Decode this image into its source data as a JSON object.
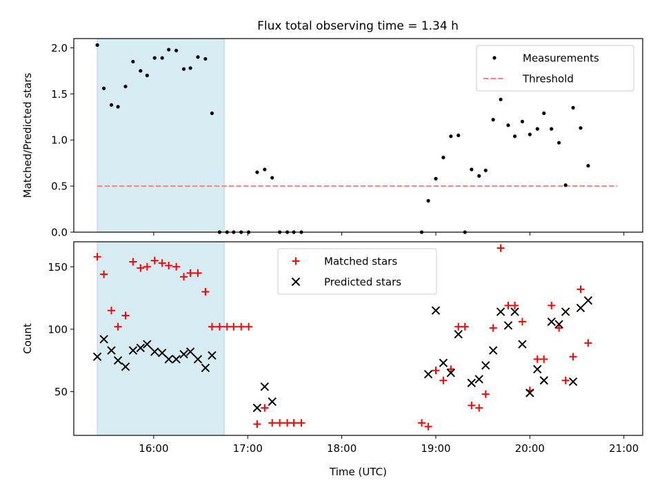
{
  "chart_data": [
    {
      "type": "scatter",
      "title": "Flux total observing time = 1.34 h",
      "xlabel": "",
      "ylabel": "Matched/Predicted stars",
      "xlim_hours": [
        15.15,
        21.2
      ],
      "ylim": [
        0,
        2.1
      ],
      "yticks": [
        0.0,
        0.5,
        1.0,
        1.5,
        2.0
      ],
      "ytick_labels": [
        "0.0",
        "0.5",
        "1.0",
        "1.5",
        "2.0"
      ],
      "shaded_span_hours": [
        15.4,
        16.75
      ],
      "threshold": {
        "value": 0.5,
        "x_range_hours": [
          15.4,
          20.93
        ],
        "color": "#ff7f7f"
      },
      "legend": {
        "position": "top-right",
        "entries": [
          "Measurements",
          "Threshold"
        ]
      },
      "series": [
        {
          "name": "Measurements",
          "marker": "dot",
          "color": "#000000",
          "points": [
            [
              15.4,
              2.03
            ],
            [
              15.47,
              1.56
            ],
            [
              15.55,
              1.38
            ],
            [
              15.62,
              1.36
            ],
            [
              15.7,
              1.58
            ],
            [
              15.78,
              1.85
            ],
            [
              15.86,
              1.75
            ],
            [
              15.93,
              1.7
            ],
            [
              16.01,
              1.89
            ],
            [
              16.09,
              1.89
            ],
            [
              16.16,
              1.98
            ],
            [
              16.24,
              1.97
            ],
            [
              16.32,
              1.77
            ],
            [
              16.39,
              1.78
            ],
            [
              16.47,
              1.9
            ],
            [
              16.55,
              1.88
            ],
            [
              16.62,
              1.29
            ],
            [
              16.7,
              0.0
            ],
            [
              16.78,
              0.0
            ],
            [
              16.85,
              0.0
            ],
            [
              16.93,
              0.0
            ],
            [
              17.01,
              0.0
            ],
            [
              17.1,
              0.65
            ],
            [
              17.18,
              0.68
            ],
            [
              17.26,
              0.59
            ],
            [
              17.34,
              0.0
            ],
            [
              17.42,
              0.0
            ],
            [
              17.49,
              0.0
            ],
            [
              17.57,
              0.0
            ],
            [
              18.85,
              0.0
            ],
            [
              18.92,
              0.34
            ],
            [
              19.0,
              0.58
            ],
            [
              19.08,
              0.81
            ],
            [
              19.16,
              1.04
            ],
            [
              19.24,
              1.05
            ],
            [
              19.31,
              0.0
            ],
            [
              19.38,
              0.68
            ],
            [
              19.46,
              0.61
            ],
            [
              19.53,
              0.67
            ],
            [
              19.61,
              1.22
            ],
            [
              19.69,
              1.44
            ],
            [
              19.77,
              1.16
            ],
            [
              19.84,
              1.04
            ],
            [
              19.92,
              1.2
            ],
            [
              20.0,
              1.06
            ],
            [
              20.08,
              1.12
            ],
            [
              20.15,
              1.29
            ],
            [
              20.23,
              1.12
            ],
            [
              20.31,
              0.97
            ],
            [
              20.38,
              0.51
            ],
            [
              20.46,
              1.35
            ],
            [
              20.54,
              1.13
            ],
            [
              20.62,
              0.72
            ]
          ]
        }
      ]
    },
    {
      "type": "scatter",
      "title": "",
      "xlabel": "Time (UTC)",
      "ylabel": "Count",
      "xlim_hours": [
        15.15,
        21.2
      ],
      "ylim": [
        15,
        170
      ],
      "yticks": [
        50,
        100,
        150
      ],
      "ytick_labels": [
        "50",
        "100",
        "150"
      ],
      "xticks_hours": [
        16,
        17,
        18,
        19,
        20,
        21
      ],
      "xtick_labels": [
        "16:00",
        "17:00",
        "18:00",
        "19:00",
        "20:00",
        "21:00"
      ],
      "shaded_span_hours": [
        15.4,
        16.75
      ],
      "legend": {
        "position": "top-center",
        "entries": [
          "Matched stars",
          "Predicted stars"
        ]
      },
      "series": [
        {
          "name": "Matched stars",
          "marker": "plus",
          "color": "#ff0000",
          "points": [
            [
              15.4,
              158
            ],
            [
              15.47,
              144
            ],
            [
              15.55,
              115
            ],
            [
              15.62,
              102
            ],
            [
              15.7,
              111
            ],
            [
              15.78,
              154
            ],
            [
              15.86,
              149
            ],
            [
              15.93,
              150
            ],
            [
              16.01,
              155
            ],
            [
              16.09,
              153
            ],
            [
              16.16,
              151
            ],
            [
              16.24,
              150
            ],
            [
              16.32,
              142
            ],
            [
              16.39,
              145
            ],
            [
              16.47,
              145
            ],
            [
              16.55,
              130
            ],
            [
              16.62,
              102
            ],
            [
              16.7,
              102
            ],
            [
              16.78,
              102
            ],
            [
              16.85,
              102
            ],
            [
              16.93,
              102
            ],
            [
              17.01,
              102
            ],
            [
              17.1,
              24
            ],
            [
              17.18,
              37
            ],
            [
              17.26,
              25
            ],
            [
              17.34,
              25
            ],
            [
              17.42,
              25
            ],
            [
              17.49,
              25
            ],
            [
              17.57,
              25
            ],
            [
              18.85,
              25
            ],
            [
              18.92,
              22
            ],
            [
              19.0,
              67
            ],
            [
              19.08,
              59
            ],
            [
              19.16,
              68
            ],
            [
              19.24,
              102
            ],
            [
              19.31,
              102
            ],
            [
              19.38,
              39
            ],
            [
              19.46,
              37
            ],
            [
              19.53,
              48
            ],
            [
              19.61,
              101
            ],
            [
              19.69,
              165
            ],
            [
              19.77,
              119
            ],
            [
              19.84,
              119
            ],
            [
              19.92,
              106
            ],
            [
              20.0,
              51
            ],
            [
              20.08,
              76
            ],
            [
              20.15,
              76
            ],
            [
              20.23,
              119
            ],
            [
              20.31,
              101
            ],
            [
              20.38,
              59
            ],
            [
              20.46,
              78
            ],
            [
              20.54,
              132
            ],
            [
              20.62,
              89
            ]
          ]
        },
        {
          "name": "Predicted stars",
          "marker": "x",
          "color": "#000000",
          "points": [
            [
              15.4,
              78
            ],
            [
              15.47,
              92
            ],
            [
              15.55,
              83
            ],
            [
              15.62,
              75
            ],
            [
              15.7,
              70
            ],
            [
              15.78,
              83
            ],
            [
              15.86,
              85
            ],
            [
              15.93,
              88
            ],
            [
              16.01,
              82
            ],
            [
              16.09,
              81
            ],
            [
              16.16,
              76
            ],
            [
              16.24,
              76
            ],
            [
              16.32,
              80
            ],
            [
              16.39,
              82
            ],
            [
              16.47,
              76
            ],
            [
              16.55,
              69
            ],
            [
              16.62,
              79
            ],
            [
              17.1,
              37
            ],
            [
              17.18,
              54
            ],
            [
              17.26,
              42
            ],
            [
              18.92,
              64
            ],
            [
              19.0,
              115
            ],
            [
              19.08,
              73
            ],
            [
              19.16,
              65
            ],
            [
              19.24,
              96
            ],
            [
              19.38,
              57
            ],
            [
              19.46,
              60
            ],
            [
              19.53,
              71
            ],
            [
              19.61,
              83
            ],
            [
              19.69,
              114
            ],
            [
              19.77,
              103
            ],
            [
              19.84,
              114
            ],
            [
              19.92,
              88
            ],
            [
              20.0,
              49
            ],
            [
              20.08,
              68
            ],
            [
              20.15,
              59
            ],
            [
              20.23,
              106
            ],
            [
              20.31,
              104
            ],
            [
              20.38,
              114
            ],
            [
              20.46,
              58
            ],
            [
              20.54,
              117
            ],
            [
              20.62,
              123
            ]
          ]
        }
      ]
    }
  ]
}
